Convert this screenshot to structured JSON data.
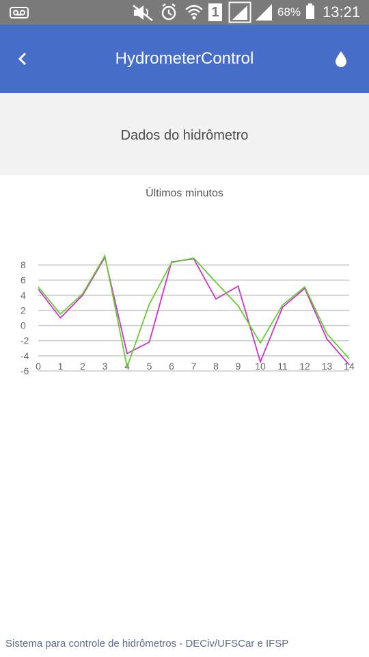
{
  "status_bar": {
    "battery_percent": "68%",
    "time": "13:21",
    "sim_slot": "1",
    "icons": [
      "voicemail-icon",
      "mute-icon",
      "alarm-icon",
      "wifi-icon",
      "sim-icon",
      "signal-icon",
      "signal-icon",
      "battery-icon"
    ]
  },
  "app_bar": {
    "title": "HydrometerControl",
    "back_icon": "chevron-left-icon",
    "action_icon": "water-drop-icon"
  },
  "section": {
    "heading": "Dados do hidrômetro"
  },
  "chart_data": {
    "type": "line",
    "title": "Últimos minutos",
    "x": [
      0,
      1,
      2,
      3,
      4,
      5,
      6,
      7,
      8,
      9,
      10,
      11,
      12,
      13,
      14
    ],
    "x_tick_labels": [
      "0",
      "1",
      "2",
      "3",
      "4",
      "5",
      "6",
      "7",
      "8",
      "9",
      "10",
      "11",
      "12",
      "13",
      "14"
    ],
    "y_tick_labels": [
      "8",
      "6",
      "4",
      "2",
      "0",
      "-2",
      "-4",
      "-6"
    ],
    "ylim": [
      -6,
      9
    ],
    "grid": true,
    "legend": "none",
    "series": [
      {
        "color": "#cc33cc",
        "values": [
          4.8,
          1.0,
          4.0,
          9.0,
          -3.7,
          -2.2,
          8.4,
          8.8,
          3.5,
          5.2,
          -4.8,
          2.4,
          4.9,
          -1.8,
          -5.2
        ]
      },
      {
        "color": "#66cc33",
        "values": [
          5.1,
          1.5,
          4.2,
          9.2,
          -5.5,
          2.8,
          8.3,
          8.9,
          5.7,
          2.6,
          -2.3,
          2.7,
          5.1,
          -1.1,
          -4.4
        ]
      }
    ]
  },
  "footer": {
    "text": "Sistema para controle de hidrômetros - DECiv/UFSCar e IFSP"
  }
}
